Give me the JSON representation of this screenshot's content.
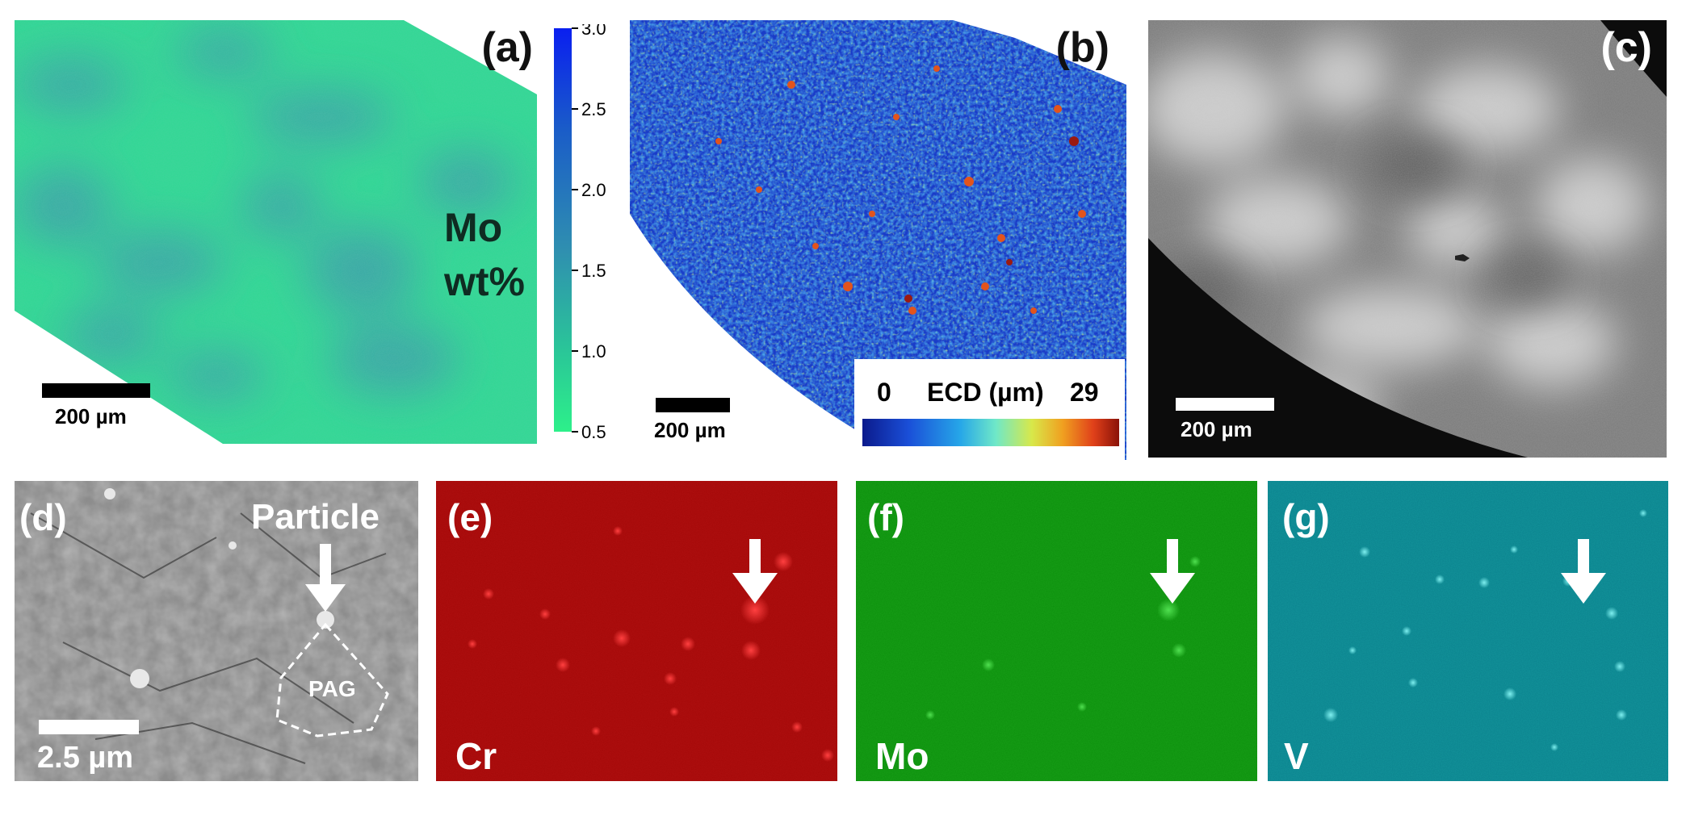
{
  "panels": {
    "a": {
      "label": "(a)",
      "title_line1": "Mo",
      "title_line2": "wt%",
      "scalebar": "200 µm"
    },
    "colorbar": {
      "ticks": [
        "3.0",
        "2.5",
        "2.0",
        "1.5",
        "1.0",
        "0.5"
      ],
      "range": [
        0.5,
        3.0
      ]
    },
    "b": {
      "label": "(b)",
      "scalebar": "200 µm",
      "ecd_min": "0",
      "ecd_title": "ECD (µm)",
      "ecd_max": "29"
    },
    "c": {
      "label": "(c)",
      "scalebar": "200 µm"
    },
    "d": {
      "label": "(d)",
      "particle_label": "Particle",
      "pag_label": "PAG",
      "scalebar": "2.5 µm"
    },
    "e": {
      "label": "(e)",
      "element": "Cr",
      "color": "#b01010"
    },
    "f": {
      "label": "(f)",
      "element": "Mo",
      "color": "#18a018"
    },
    "g": {
      "label": "(g)",
      "element": "V",
      "color": "#14959c"
    }
  }
}
